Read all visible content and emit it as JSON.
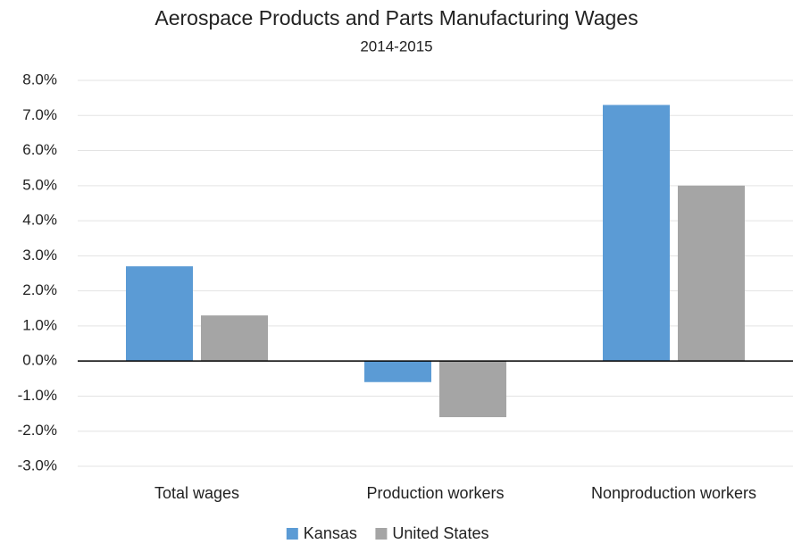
{
  "chart_data": {
    "type": "bar",
    "title": "Aerospace Products and Parts Manufacturing Wages",
    "subtitle": "2014-2015",
    "categories": [
      "Total wages",
      "Production workers",
      "Nonproduction workers"
    ],
    "series": [
      {
        "name": "Kansas",
        "color": "#5b9bd5",
        "values": [
          2.7,
          -0.6,
          7.3
        ]
      },
      {
        "name": "United States",
        "color": "#a5a5a5",
        "values": [
          1.3,
          -1.6,
          5.0
        ]
      }
    ],
    "ylim": [
      -3,
      8
    ],
    "yticks": [
      {
        "value": -3,
        "label": "-3.0%"
      },
      {
        "value": -2,
        "label": "-2.0%"
      },
      {
        "value": -1,
        "label": "-1.0%"
      },
      {
        "value": 0,
        "label": "0.0%"
      },
      {
        "value": 1,
        "label": "1.0%"
      },
      {
        "value": 2,
        "label": "2.0%"
      },
      {
        "value": 3,
        "label": "3.0%"
      },
      {
        "value": 4,
        "label": "4.0%"
      },
      {
        "value": 5,
        "label": "5.0%"
      },
      {
        "value": 6,
        "label": "6.0%"
      },
      {
        "value": 7,
        "label": "7.0%"
      },
      {
        "value": 8,
        "label": "8.0%"
      }
    ],
    "grid": true,
    "legend": "bottom"
  }
}
